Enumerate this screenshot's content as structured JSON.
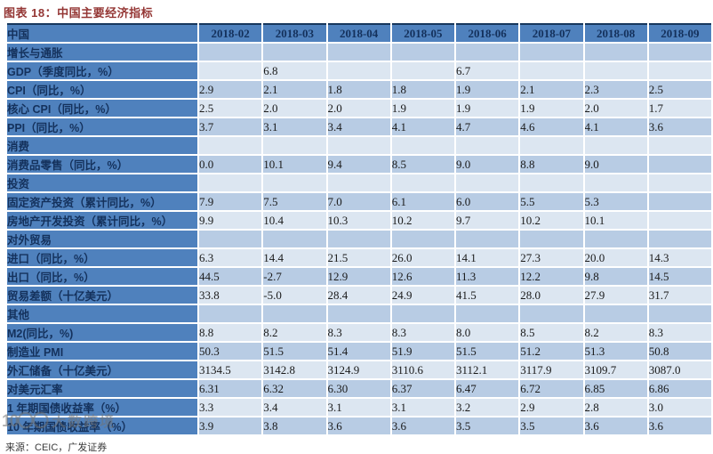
{
  "title": "图表 18：中国主要经济指标",
  "table": {
    "corner_label": "中国",
    "columns": [
      "2018-02",
      "2018-03",
      "2018-04",
      "2018-05",
      "2018-06",
      "2018-07",
      "2018-08",
      "2018-09"
    ],
    "rows": [
      {
        "type": "section",
        "label": "增长与通胀",
        "values": [
          "",
          "",
          "",
          "",
          "",
          "",
          "",
          ""
        ]
      },
      {
        "type": "data",
        "label": "GDP（季度同比，%）",
        "values": [
          "",
          "6.8",
          "",
          "",
          "6.7",
          "",
          "",
          ""
        ]
      },
      {
        "type": "data",
        "label": "CPI（同比，%）",
        "values": [
          "2.9",
          "2.1",
          "1.8",
          "1.8",
          "1.9",
          "2.1",
          "2.3",
          "2.5"
        ]
      },
      {
        "type": "data",
        "label": "核心 CPI（同比，%）",
        "values": [
          "2.5",
          "2.0",
          "2.0",
          "1.9",
          "1.9",
          "1.9",
          "2.0",
          "1.7"
        ]
      },
      {
        "type": "data",
        "label": "PPI（同比，%）",
        "values": [
          "3.7",
          "3.1",
          "3.4",
          "4.1",
          "4.7",
          "4.6",
          "4.1",
          "3.6"
        ]
      },
      {
        "type": "section",
        "label": "消费",
        "values": [
          "",
          "",
          "",
          "",
          "",
          "",
          "",
          ""
        ]
      },
      {
        "type": "data",
        "label": "消费品零售（同比，%）",
        "values": [
          "0.0",
          "10.1",
          "9.4",
          "8.5",
          "9.0",
          "8.8",
          "9.0",
          ""
        ]
      },
      {
        "type": "section",
        "label": "投资",
        "values": [
          "",
          "",
          "",
          "",
          "",
          "",
          "",
          ""
        ]
      },
      {
        "type": "data",
        "label": "固定资产投资（累计同比，%）",
        "values": [
          "7.9",
          "7.5",
          "7.0",
          "6.1",
          "6.0",
          "5.5",
          "5.3",
          ""
        ]
      },
      {
        "type": "data",
        "label": "房地产开发投资（累计同比，%）",
        "values": [
          "9.9",
          "10.4",
          "10.3",
          "10.2",
          "9.7",
          "10.2",
          "10.1",
          ""
        ]
      },
      {
        "type": "section",
        "label": "对外贸易",
        "values": [
          "",
          "",
          "",
          "",
          "",
          "",
          "",
          ""
        ]
      },
      {
        "type": "data",
        "label": "进口（同比，%）",
        "values": [
          "6.3",
          "14.4",
          "21.5",
          "26.0",
          "14.1",
          "27.3",
          "20.0",
          "14.3"
        ]
      },
      {
        "type": "data",
        "label": "出口（同比，%）",
        "values": [
          "44.5",
          "-2.7",
          "12.9",
          "12.6",
          "11.3",
          "12.2",
          "9.8",
          "14.5"
        ]
      },
      {
        "type": "data",
        "label": "贸易差额（十亿美元）",
        "values": [
          "33.8",
          "-5.0",
          "28.4",
          "24.9",
          "41.5",
          "28.0",
          "27.9",
          "31.7"
        ]
      },
      {
        "type": "section",
        "label": "其他",
        "values": [
          "",
          "",
          "",
          "",
          "",
          "",
          "",
          ""
        ]
      },
      {
        "type": "data",
        "label": "M2(同比，%)",
        "values": [
          "8.8",
          "8.2",
          "8.3",
          "8.3",
          "8.0",
          "8.5",
          "8.2",
          "8.3"
        ]
      },
      {
        "type": "data",
        "label": "制造业 PMI",
        "values": [
          "50.3",
          "51.5",
          "51.4",
          "51.9",
          "51.5",
          "51.2",
          "51.3",
          "50.8"
        ]
      },
      {
        "type": "data",
        "label": "外汇储备（十亿美元）",
        "values": [
          "3134.5",
          "3142.8",
          "3124.9",
          "3110.6",
          "3112.1",
          "3117.9",
          "3109.7",
          "3087.0"
        ]
      },
      {
        "type": "data",
        "label": "对美元汇率",
        "values": [
          "6.31",
          "6.32",
          "6.30",
          "6.37",
          "6.47",
          "6.72",
          "6.85",
          "6.86"
        ]
      },
      {
        "type": "data",
        "label": "1 年期国债收益率（%）",
        "values": [
          "3.3",
          "3.4",
          "3.1",
          "3.1",
          "3.2",
          "2.9",
          "2.8",
          "3.0"
        ]
      },
      {
        "type": "data",
        "label": "10 年期国债收益率（%）",
        "values": [
          "3.9",
          "3.8",
          "3.6",
          "3.6",
          "3.5",
          "3.5",
          "3.6",
          "3.6"
        ]
      }
    ]
  },
  "footer": {
    "source_label": "来源：CEIC，广发证券"
  },
  "watermark": {
    "logo": "10〇〇",
    "text": "大数跨境"
  },
  "colors": {
    "title_red": "#943634",
    "header_blue": "#4f81bd",
    "row_medium": "#b8cce4",
    "row_light": "#dce6f1",
    "border_navy": "#17375d",
    "grid_white": "#ffffff"
  }
}
